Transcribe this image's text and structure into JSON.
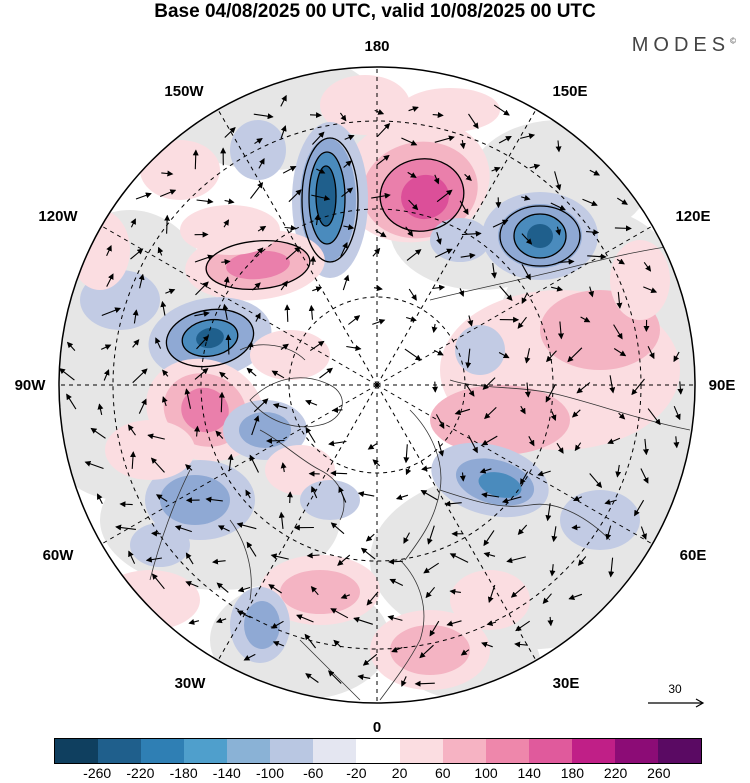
{
  "header": {
    "title": "Base 04/08/2025 00 UTC, valid 10/08/2025 00 UTC",
    "brand": "MODES",
    "brand_mark": "©"
  },
  "map": {
    "projection": "north polar stereographic",
    "longitude_labels": {
      "top": "180",
      "bottom": "0",
      "left": "90W",
      "right": "90E",
      "upper_left_1": "150W",
      "upper_left_2": "120W",
      "lower_left_1": "60W",
      "lower_left_2": "30W",
      "upper_right_1": "150E",
      "upper_right_2": "120E",
      "lower_right_1": "60E",
      "lower_right_2": "30E"
    },
    "reference_vector": "30"
  },
  "colorbar": {
    "ticks": [
      "-260",
      "-220",
      "-180",
      "-140",
      "-100",
      "-60",
      "-20",
      "20",
      "60",
      "100",
      "140",
      "180",
      "220",
      "260"
    ],
    "colors": [
      "#0f3f5f",
      "#1f5f8c",
      "#2f7fb4",
      "#4f9fcc",
      "#8ab2d6",
      "#b9c7e2",
      "#e4e6f1",
      "#ffffff",
      "#fbdde1",
      "#f6b3c3",
      "#ee87ab",
      "#e05a9c",
      "#c01f87",
      "#8c0c76",
      "#5a0a63"
    ]
  },
  "colors": {
    "land_gray": "#e6e6e6",
    "blue_1": "#c2cbe4",
    "blue_2": "#8fa9d4",
    "blue_3": "#4a8bbd",
    "blue_4": "#1f5f8c",
    "red_1": "#fbdde1",
    "red_2": "#f4b4c3",
    "red_3": "#ea7fab",
    "red_4": "#dc4f99"
  }
}
